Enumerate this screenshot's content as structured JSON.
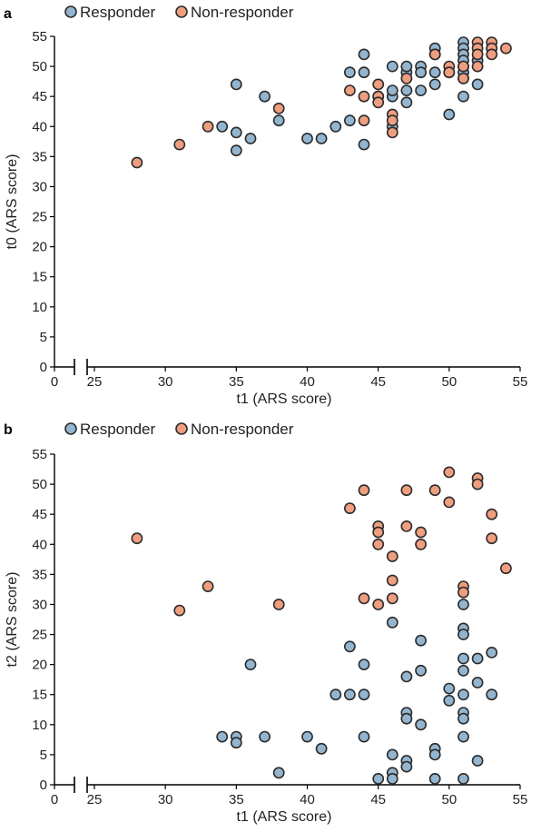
{
  "colors": {
    "responder_fill": "#93b5cf",
    "non_responder_fill": "#ef9e80",
    "stroke": "#2b2b2b",
    "axis": "#000000"
  },
  "chart_data": [
    {
      "panel_label": "a",
      "type": "scatter",
      "xlabel": "t1 (ARS score)",
      "ylabel": "t0 (ARS score)",
      "x_ticks": [
        "0",
        "25",
        "30",
        "35",
        "40",
        "45",
        "50",
        "55"
      ],
      "y_ticks": [
        "0",
        "5",
        "10",
        "15",
        "20",
        "25",
        "30",
        "35",
        "40",
        "45",
        "50",
        "55"
      ],
      "xlim": [
        0,
        55
      ],
      "ylim": [
        0,
        55
      ],
      "x_axis_break": [
        0,
        25
      ],
      "legend": {
        "position": "top-left",
        "items": [
          "Responder",
          "Non-responder"
        ]
      },
      "series": [
        {
          "name": "Responder",
          "points": [
            [
              35,
              47
            ],
            [
              35,
              39
            ],
            [
              35,
              36
            ],
            [
              34,
              40
            ],
            [
              36,
              38
            ],
            [
              37,
              45
            ],
            [
              38,
              41
            ],
            [
              40,
              38
            ],
            [
              41,
              38
            ],
            [
              42,
              40
            ],
            [
              43,
              41
            ],
            [
              43,
              49
            ],
            [
              44,
              52
            ],
            [
              44,
              49
            ],
            [
              44,
              37
            ],
            [
              45,
              45
            ],
            [
              46,
              50
            ],
            [
              46,
              45
            ],
            [
              46,
              46
            ],
            [
              46,
              40
            ],
            [
              47,
              49
            ],
            [
              47,
              50
            ],
            [
              47,
              46
            ],
            [
              47,
              44
            ],
            [
              48,
              50
            ],
            [
              48,
              49
            ],
            [
              48,
              46
            ],
            [
              49,
              53
            ],
            [
              49,
              52
            ],
            [
              49,
              49
            ],
            [
              49,
              47
            ],
            [
              50,
              49
            ],
            [
              50,
              42
            ],
            [
              51,
              54
            ],
            [
              51,
              53
            ],
            [
              51,
              52
            ],
            [
              51,
              51
            ],
            [
              51,
              50
            ],
            [
              51,
              49
            ],
            [
              51,
              48
            ],
            [
              51,
              45
            ],
            [
              52,
              51
            ],
            [
              52,
              47
            ],
            [
              53,
              53
            ]
          ]
        },
        {
          "name": "Non-responder",
          "points": [
            [
              28,
              34
            ],
            [
              31,
              37
            ],
            [
              33,
              40
            ],
            [
              38,
              43
            ],
            [
              43,
              46
            ],
            [
              44,
              45
            ],
            [
              44,
              41
            ],
            [
              45,
              47
            ],
            [
              45,
              45
            ],
            [
              45,
              44
            ],
            [
              46,
              42
            ],
            [
              46,
              41
            ],
            [
              46,
              39
            ],
            [
              47,
              48
            ],
            [
              49,
              52
            ],
            [
              50,
              50
            ],
            [
              50,
              49
            ],
            [
              51,
              48
            ],
            [
              51,
              50
            ],
            [
              52,
              54
            ],
            [
              52,
              53
            ],
            [
              52,
              52
            ],
            [
              52,
              50
            ],
            [
              53,
              54
            ],
            [
              53,
              53
            ],
            [
              53,
              52
            ],
            [
              54,
              53
            ]
          ]
        }
      ]
    },
    {
      "panel_label": "b",
      "type": "scatter",
      "xlabel": "t1 (ARS score)",
      "ylabel": "t2 (ARS score)",
      "x_ticks": [
        "0",
        "25",
        "30",
        "35",
        "40",
        "45",
        "50",
        "55"
      ],
      "y_ticks": [
        "0",
        "5",
        "10",
        "15",
        "20",
        "25",
        "30",
        "35",
        "40",
        "45",
        "50",
        "55"
      ],
      "xlim": [
        0,
        55
      ],
      "ylim": [
        0,
        55
      ],
      "x_axis_break": [
        0,
        25
      ],
      "legend": {
        "position": "top-left",
        "items": [
          "Responder",
          "Non-responder"
        ]
      },
      "series": [
        {
          "name": "Responder",
          "points": [
            [
              34,
              8
            ],
            [
              35,
              8
            ],
            [
              35,
              7
            ],
            [
              36,
              20
            ],
            [
              37,
              8
            ],
            [
              38,
              2
            ],
            [
              40,
              8
            ],
            [
              41,
              6
            ],
            [
              42,
              15
            ],
            [
              43,
              15
            ],
            [
              43,
              23
            ],
            [
              44,
              20
            ],
            [
              44,
              15
            ],
            [
              44,
              8
            ],
            [
              45,
              1
            ],
            [
              46,
              27
            ],
            [
              46,
              5
            ],
            [
              46,
              2
            ],
            [
              46,
              1
            ],
            [
              47,
              18
            ],
            [
              47,
              12
            ],
            [
              47,
              11
            ],
            [
              47,
              4
            ],
            [
              47,
              3
            ],
            [
              48,
              24
            ],
            [
              48,
              19
            ],
            [
              48,
              10
            ],
            [
              49,
              6
            ],
            [
              49,
              5
            ],
            [
              49,
              1
            ],
            [
              50,
              16
            ],
            [
              50,
              14
            ],
            [
              51,
              30
            ],
            [
              51,
              26
            ],
            [
              51,
              25
            ],
            [
              51,
              21
            ],
            [
              51,
              19
            ],
            [
              51,
              15
            ],
            [
              51,
              12
            ],
            [
              51,
              11
            ],
            [
              51,
              8
            ],
            [
              51,
              1
            ],
            [
              52,
              21
            ],
            [
              52,
              17
            ],
            [
              52,
              4
            ],
            [
              53,
              22
            ],
            [
              53,
              15
            ]
          ]
        },
        {
          "name": "Non-responder",
          "points": [
            [
              28,
              41
            ],
            [
              31,
              29
            ],
            [
              33,
              33
            ],
            [
              38,
              30
            ],
            [
              43,
              46
            ],
            [
              44,
              49
            ],
            [
              44,
              31
            ],
            [
              45,
              43
            ],
            [
              45,
              42
            ],
            [
              45,
              40
            ],
            [
              45,
              30
            ],
            [
              46,
              38
            ],
            [
              46,
              34
            ],
            [
              46,
              31
            ],
            [
              47,
              49
            ],
            [
              47,
              43
            ],
            [
              48,
              42
            ],
            [
              48,
              40
            ],
            [
              49,
              49
            ],
            [
              50,
              52
            ],
            [
              50,
              47
            ],
            [
              51,
              33
            ],
            [
              51,
              32
            ],
            [
              52,
              51
            ],
            [
              52,
              50
            ],
            [
              53,
              45
            ],
            [
              53,
              41
            ],
            [
              54,
              36
            ]
          ]
        }
      ]
    }
  ]
}
